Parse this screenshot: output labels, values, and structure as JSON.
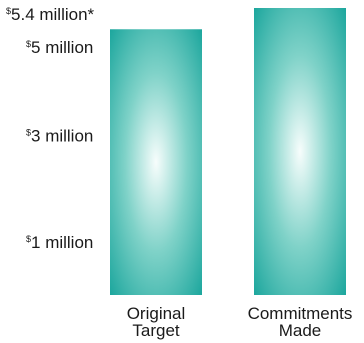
{
  "chart_data": {
    "type": "bar",
    "categories": [
      [
        "Original",
        "Target"
      ],
      [
        "Commitments",
        "Made"
      ]
    ],
    "values": [
      5,
      5.4
    ],
    "ylim": [
      0,
      5.4
    ],
    "currency_symbol": "$",
    "ticks": [
      {
        "value": 5.4,
        "label": "5.4 million*"
      },
      {
        "value": 5,
        "label": "5 million"
      },
      {
        "value": 3,
        "label": "3 million"
      },
      {
        "value": 1,
        "label": "1 million"
      }
    ],
    "bar_colors": {
      "center": "#f7fdfc",
      "mid": "#7fd2c8",
      "edge": "#10a198"
    },
    "grid": false,
    "legend": "none"
  }
}
